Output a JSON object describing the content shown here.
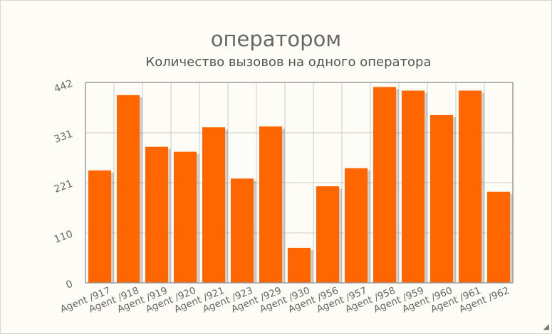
{
  "chart_data": {
    "type": "bar",
    "title": "операторoм",
    "subtitle": "Количество вызовов на одного оператора",
    "categories": [
      "Agent /917",
      "Agent /918",
      "Agent /919",
      "Agent /920",
      "Agent /921",
      "Agent /923",
      "Agent /929",
      "Agent /930",
      "Agent /956",
      "Agent /957",
      "Agent /958",
      "Agent /959",
      "Agent /960",
      "Agent /961",
      "Agent /962"
    ],
    "series": [
      {
        "values": [
          248,
          414,
          300,
          289,
          343,
          230,
          345,
          77,
          213,
          253,
          432,
          424,
          370,
          424,
          201
        ]
      }
    ],
    "yticks": [
      "0",
      "110",
      "221",
      "331",
      "442"
    ],
    "ylim": [
      0,
      442
    ],
    "grid": true,
    "colors": {
      "bar": "#ff6600",
      "grid": "#cccccc",
      "axis": "#999999",
      "text": "#666666"
    }
  }
}
